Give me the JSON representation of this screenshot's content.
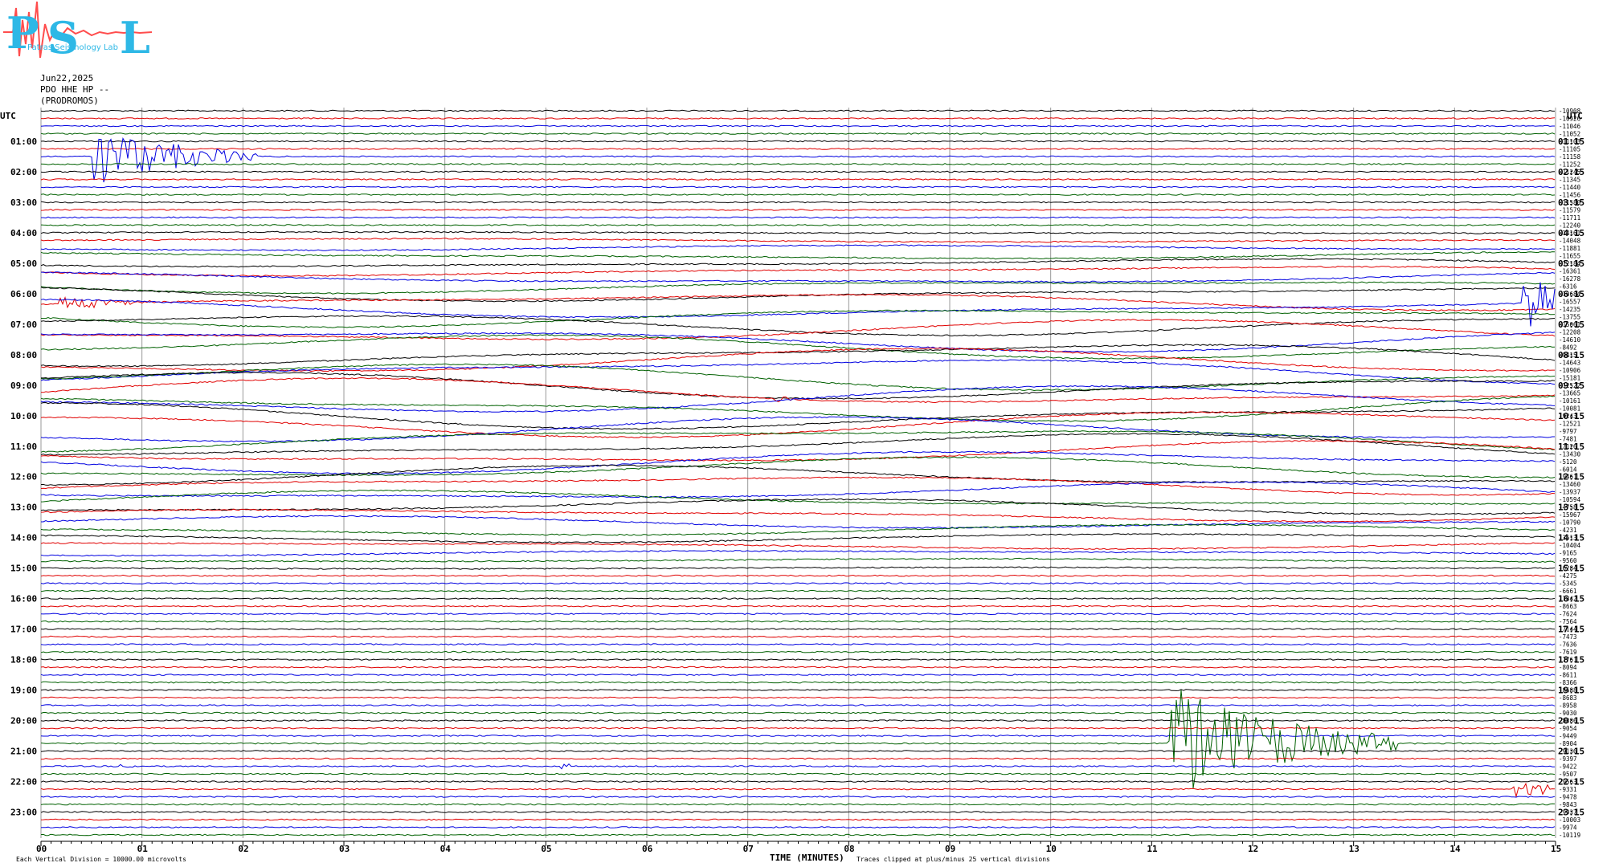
{
  "header": {
    "logo_text": "PSL",
    "logo_subtitle": "Patras Seismology Lab",
    "date": "Jun22,2025",
    "station": "PDO HHE HP --",
    "location": "(PRODROMOS)"
  },
  "chart_data": {
    "type": "line",
    "title": "",
    "xlabel": "TIME (MINUTES)",
    "xlim": [
      0,
      15
    ],
    "x_ticks": [
      "00",
      "01",
      "02",
      "03",
      "04",
      "05",
      "06",
      "07",
      "08",
      "09",
      "10",
      "11",
      "12",
      "13",
      "14",
      "15"
    ],
    "left_axis_label": "UTC",
    "right_axis_label": "UTC",
    "left_hour_labels": [
      "01:00",
      "02:00",
      "03:00",
      "04:00",
      "05:00",
      "06:00",
      "07:00",
      "08:00",
      "09:00",
      "10:00",
      "11:00",
      "12:00",
      "13:00",
      "14:00",
      "15:00",
      "16:00",
      "17:00",
      "18:00",
      "19:00",
      "20:00",
      "21:00",
      "22:00",
      "23:00"
    ],
    "right_hour_labels": [
      "01:15",
      "02:15",
      "03:15",
      "04:15",
      "05:15",
      "06:15",
      "07:15",
      "08:15",
      "09:15",
      "10:15",
      "11:15",
      "12:15",
      "13:15",
      "14:15",
      "15:15",
      "16:15",
      "17:15",
      "18:15",
      "19:15",
      "20:15",
      "21:15",
      "22:15",
      "23:15"
    ],
    "trace_offsets": [
      -10908,
      -10926,
      -11046,
      -11052,
      -11103,
      -11105,
      -11158,
      -11252,
      -11245,
      -11345,
      -11440,
      -11456,
      -11580,
      -11579,
      -11711,
      -12240,
      -14161,
      -14048,
      -11881,
      -11655,
      -12184,
      -16361,
      -16278,
      -6316,
      -10684,
      -16557,
      -14235,
      -13755,
      -15061,
      -12208,
      -14610,
      -8492,
      -9415,
      -14643,
      -10906,
      -15181,
      -12522,
      -13665,
      -10161,
      -10081,
      -9243,
      -12521,
      -9797,
      -7481,
      -7126,
      -13430,
      -5120,
      -6014,
      -9461,
      -13460,
      -13937,
      -10594,
      -4758,
      -15967,
      -10790,
      -4231,
      -3613,
      -10404,
      -9165,
      -9560,
      -6284,
      -4275,
      -5345,
      -6661,
      -7842,
      -8663,
      -7624,
      -7564,
      -7144,
      -7473,
      -7636,
      -7619,
      -7761,
      -8094,
      -8611,
      -8366,
      -8688,
      -8683,
      -8958,
      -9030,
      -8886,
      -9054,
      -9449,
      -8904,
      -9136,
      -9397,
      -9422,
      -9507,
      -9563,
      -9331,
      -9478,
      -9843,
      -9937,
      -10003,
      -9974,
      -10119
    ],
    "trace_colors": [
      "#000000",
      "#e00000",
      "#0000e0",
      "#006000"
    ],
    "events": [
      {
        "row": 6,
        "minute": 0.55,
        "amplitude": "large",
        "color": "#000000"
      },
      {
        "row": 25,
        "minute": 0.2,
        "amplitude": "medium",
        "color": "#0000e0"
      },
      {
        "row": 26,
        "minute": 14.7,
        "amplitude": "large",
        "color": "#e00000"
      },
      {
        "row": 37,
        "minute": 7.3,
        "amplitude": "small",
        "color": "#e00000"
      },
      {
        "row": 83,
        "minute": 11.2,
        "amplitude": "very-large",
        "color": "#006000"
      },
      {
        "row": 86,
        "minute": 0.8,
        "amplitude": "small",
        "color": "#0000e0"
      },
      {
        "row": 86,
        "minute": 5.15,
        "amplitude": "small",
        "color": "#0000e0"
      },
      {
        "row": 89,
        "minute": 14.6,
        "amplitude": "medium",
        "color": "#e00000"
      }
    ]
  },
  "footer": {
    "scale_note": "Each Vertical Division = 10000.00 microvolts",
    "clip_note": "Traces clipped at plus/minus 25 vertical divisions"
  }
}
